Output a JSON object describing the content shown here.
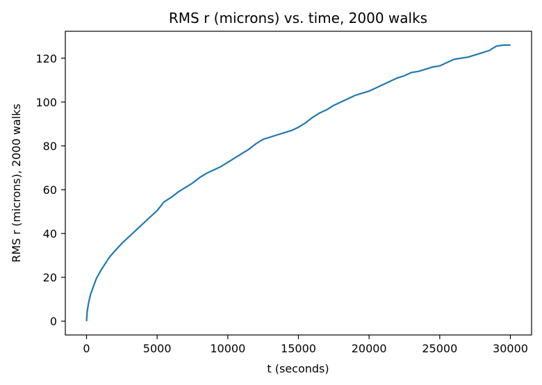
{
  "chart_data": {
    "type": "line",
    "title": "RMS r (microns) vs. time, 2000 walks",
    "xlabel": "t (seconds)",
    "ylabel": "RMS r (microns), 2000 walks",
    "xlim": [
      -1500,
      31500
    ],
    "ylim": [
      -6.3,
      132.3
    ],
    "x_ticks": [
      0,
      5000,
      10000,
      15000,
      20000,
      25000,
      30000
    ],
    "y_ticks": [
      0,
      20,
      40,
      60,
      80,
      100,
      120
    ],
    "x_tick_labels": [
      "0",
      "5000",
      "10000",
      "15000",
      "20000",
      "25000",
      "30000"
    ],
    "y_tick_labels": [
      "0",
      "20",
      "40",
      "60",
      "80",
      "100",
      "120"
    ],
    "grid": false,
    "legend": false,
    "series": [
      {
        "color": "#1f77b4",
        "x": [
          0,
          50,
          150,
          300,
          500,
          700,
          1000,
          1300,
          1600,
          2000,
          2500,
          3000,
          3500,
          4000,
          4500,
          5000,
          5500,
          6000,
          6500,
          7000,
          7500,
          8000,
          8500,
          9000,
          9500,
          10000,
          10500,
          11000,
          11500,
          12000,
          12500,
          13000,
          13500,
          14000,
          14500,
          15000,
          15500,
          16000,
          16500,
          17000,
          17500,
          18000,
          18500,
          19000,
          19500,
          20000,
          20500,
          21000,
          21500,
          22000,
          22500,
          23000,
          23500,
          24000,
          24500,
          25000,
          25500,
          26000,
          26500,
          27000,
          27500,
          28000,
          28500,
          29000,
          29500,
          30000
        ],
        "y": [
          0,
          4.5,
          8.5,
          12.5,
          16.0,
          19.5,
          23.0,
          26.0,
          29.0,
          32.0,
          35.5,
          38.5,
          41.5,
          44.5,
          47.5,
          50.5,
          54.5,
          56.5,
          59.0,
          61.0,
          63.0,
          65.5,
          67.5,
          69.0,
          70.5,
          72.5,
          74.5,
          76.5,
          78.5,
          81.0,
          83.0,
          84.0,
          85.0,
          86.0,
          87.0,
          88.5,
          90.5,
          93.0,
          95.0,
          96.5,
          98.5,
          100.0,
          101.5,
          103.0,
          104.0,
          105.0,
          106.5,
          108.0,
          109.5,
          111.0,
          112.0,
          113.5,
          114.0,
          115.0,
          116.0,
          116.5,
          118.0,
          119.5,
          120.0,
          120.5,
          121.5,
          122.5,
          123.5,
          125.5,
          126.0,
          126.0
        ]
      }
    ]
  }
}
